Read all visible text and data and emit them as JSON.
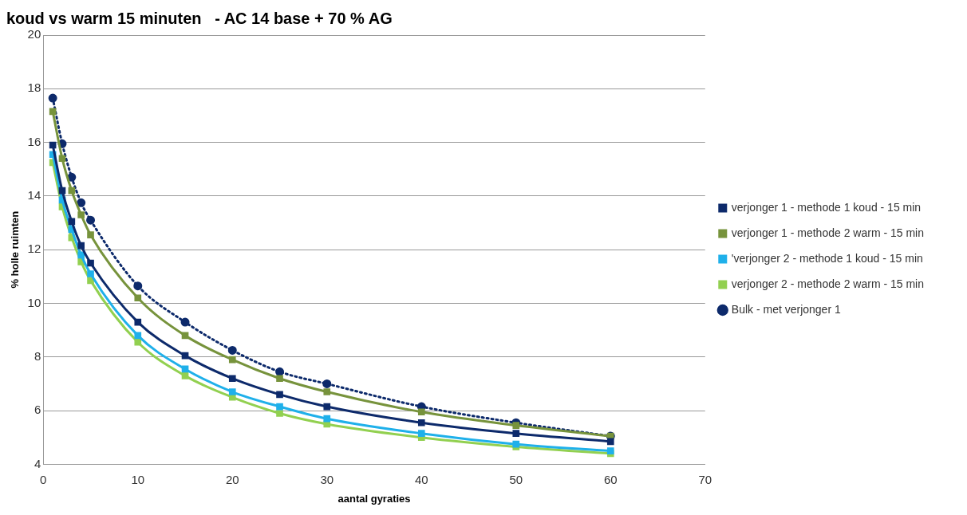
{
  "chart_data": {
    "type": "line",
    "title": "koud vs warm 15 minuten   - AC 14 base + 70 % AG",
    "xlabel": "aantal gyraties",
    "ylabel": "% holle ruimten",
    "x": [
      1,
      2,
      3,
      4,
      5,
      10,
      15,
      20,
      25,
      30,
      40,
      50,
      60
    ],
    "series": [
      {
        "name": "verjonger 1 - methode 1 koud - 15 min",
        "color": "#0d2a6b",
        "marker": "square",
        "line_style": "solid",
        "values": [
          15.9,
          14.2,
          13.05,
          12.15,
          11.5,
          9.3,
          8.05,
          7.2,
          6.6,
          6.15,
          5.55,
          5.15,
          4.85
        ]
      },
      {
        "name": "verjonger 1 - methode 2 warm - 15 min",
        "color": "#77933c",
        "marker": "square",
        "line_style": "solid",
        "values": [
          17.15,
          15.4,
          14.2,
          13.3,
          12.55,
          10.2,
          8.8,
          7.9,
          7.2,
          6.7,
          5.95,
          5.45,
          5.05
        ]
      },
      {
        "name": "'verjonger 2 - methode 1 koud - 15 min",
        "color": "#1fb0ea",
        "marker": "square",
        "line_style": "solid",
        "values": [
          15.55,
          13.85,
          12.75,
          11.8,
          11.1,
          8.8,
          7.55,
          6.7,
          6.15,
          5.7,
          5.15,
          4.75,
          4.5
        ]
      },
      {
        "name": "verjonger 2 - methode 2 warm - 15 min",
        "color": "#92d050",
        "marker": "square",
        "line_style": "solid",
        "values": [
          15.25,
          13.6,
          12.45,
          11.55,
          10.85,
          8.55,
          7.3,
          6.5,
          5.9,
          5.5,
          5.0,
          4.65,
          4.4
        ]
      },
      {
        "name": "Bulk - met verjonger 1",
        "color": "#0d2a6b",
        "marker": "circle",
        "line_style": "dotted",
        "values": [
          17.65,
          15.95,
          14.7,
          13.75,
          13.1,
          10.65,
          9.3,
          8.25,
          7.45,
          7.0,
          6.15,
          5.55,
          5.05
        ]
      }
    ],
    "xlim": [
      0,
      70
    ],
    "xticks": [
      0,
      10,
      20,
      30,
      40,
      50,
      60,
      70
    ],
    "ylim": [
      4,
      20
    ],
    "yticks": [
      4,
      6,
      8,
      10,
      12,
      14,
      16,
      18,
      20
    ],
    "grid": "y",
    "legend": "right"
  }
}
